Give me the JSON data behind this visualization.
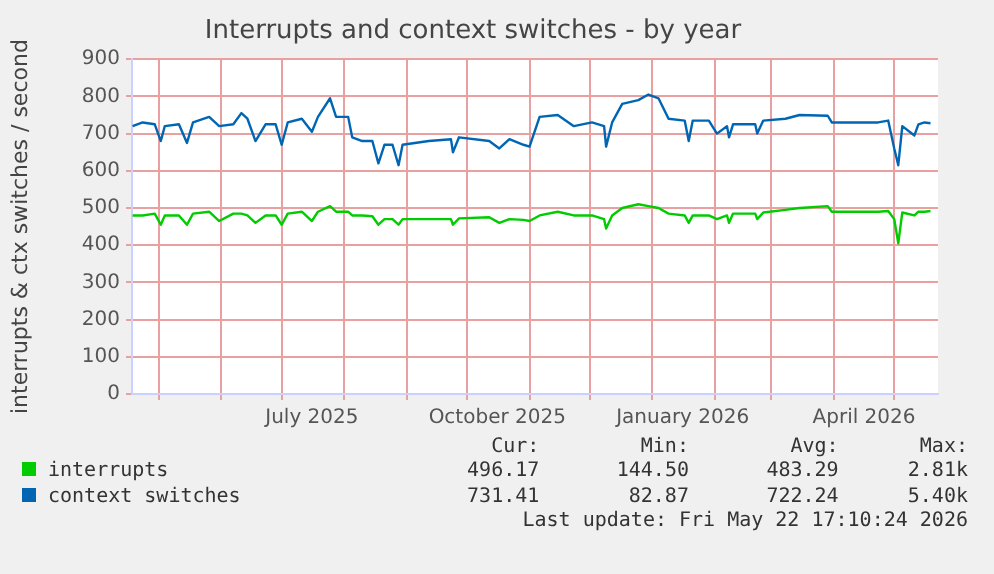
{
  "chart_data": {
    "type": "line",
    "title": "Interrupts and context switches - by year",
    "ylabel": "interrupts & ctx switches / second",
    "x": [
      "2025-04-18",
      "2025-04-23",
      "2025-04-29",
      "2025-05-02",
      "2025-05-04",
      "2025-05-11",
      "2025-05-15",
      "2025-05-18",
      "2025-05-26",
      "2025-05-31",
      "2025-06-07",
      "2025-06-11",
      "2025-06-14",
      "2025-06-18",
      "2025-06-23",
      "2025-06-28",
      "2025-07-01",
      "2025-07-04",
      "2025-07-11",
      "2025-07-16",
      "2025-07-19",
      "2025-07-25",
      "2025-07-28",
      "2025-08-03",
      "2025-08-05",
      "2025-08-10",
      "2025-08-15",
      "2025-08-18",
      "2025-08-21",
      "2025-08-25",
      "2025-08-28",
      "2025-08-30",
      "2025-09-12",
      "2025-09-23",
      "2025-09-24",
      "2025-09-27",
      "2025-10-12",
      "2025-10-17",
      "2025-10-22",
      "2025-10-29",
      "2025-11-01",
      "2025-11-06",
      "2025-11-15",
      "2025-11-23",
      "2025-12-02",
      "2025-12-08",
      "2025-12-09",
      "2025-12-12",
      "2025-12-17",
      "2025-12-25",
      "2025-12-30",
      "2026-01-04",
      "2026-01-09",
      "2026-01-17",
      "2026-01-19",
      "2026-01-21",
      "2026-01-29",
      "2026-02-02",
      "2026-02-07",
      "2026-02-08",
      "2026-02-10",
      "2026-02-21",
      "2026-02-22",
      "2026-02-25",
      "2026-03-08",
      "2026-03-15",
      "2026-03-29",
      "2026-03-31",
      "2026-04-23",
      "2026-04-28",
      "2026-05-01",
      "2026-05-03",
      "2026-05-05",
      "2026-05-11",
      "2026-05-13",
      "2026-05-16",
      "2026-05-19"
    ],
    "series": [
      {
        "name": "interrupts",
        "color": "#00cc00",
        "values": [
          480,
          480,
          485,
          455,
          480,
          480,
          455,
          485,
          490,
          465,
          485,
          485,
          480,
          460,
          480,
          480,
          455,
          485,
          490,
          465,
          490,
          505,
          490,
          490,
          480,
          480,
          478,
          455,
          470,
          470,
          455,
          470,
          470,
          470,
          455,
          472,
          475,
          460,
          470,
          468,
          465,
          480,
          490,
          480,
          480,
          470,
          445,
          480,
          500,
          510,
          505,
          500,
          485,
          480,
          460,
          480,
          480,
          470,
          480,
          460,
          485,
          485,
          470,
          488,
          495,
          500,
          505,
          490,
          490,
          492,
          470,
          405,
          488,
          480,
          490,
          490,
          492
        ]
      },
      {
        "name": "context switches",
        "color": "#0066b3",
        "values": [
          720,
          730,
          725,
          680,
          720,
          725,
          675,
          730,
          745,
          720,
          725,
          755,
          740,
          680,
          725,
          725,
          670,
          730,
          740,
          705,
          745,
          795,
          745,
          745,
          690,
          680,
          680,
          620,
          670,
          670,
          615,
          670,
          680,
          685,
          650,
          690,
          680,
          660,
          685,
          670,
          665,
          745,
          750,
          720,
          730,
          720,
          665,
          730,
          780,
          790,
          805,
          795,
          740,
          735,
          680,
          735,
          735,
          700,
          720,
          690,
          725,
          725,
          700,
          735,
          740,
          750,
          748,
          730,
          730,
          735,
          660,
          615,
          720,
          695,
          725,
          730,
          728
        ]
      }
    ],
    "xlim": [
      "2025-04-17T17:10",
      "2026-05-22T17:10"
    ],
    "xticks": [
      {
        "value": "2025-05-01",
        "label": null
      },
      {
        "value": "2025-06-01",
        "label": null
      },
      {
        "value": "2025-07-01",
        "label": null
      },
      {
        "value": "2025-07-16",
        "label": "July 2025"
      },
      {
        "value": "2025-08-01",
        "label": null
      },
      {
        "value": "2025-09-01",
        "label": null
      },
      {
        "value": "2025-10-01",
        "label": null
      },
      {
        "value": "2025-10-16",
        "label": "October 2025"
      },
      {
        "value": "2025-11-01",
        "label": null
      },
      {
        "value": "2025-12-01",
        "label": null
      },
      {
        "value": "2026-01-01",
        "label": null
      },
      {
        "value": "2026-01-16",
        "label": "January 2026"
      },
      {
        "value": "2026-02-01",
        "label": null
      },
      {
        "value": "2026-03-01",
        "label": null
      },
      {
        "value": "2026-04-01",
        "label": null
      },
      {
        "value": "2026-04-16",
        "label": "April 2026"
      },
      {
        "value": "2026-05-01",
        "label": null
      }
    ],
    "ylim": [
      0,
      900
    ],
    "yticks": [
      0,
      100,
      200,
      300,
      400,
      500,
      600,
      700,
      800,
      900
    ],
    "grid": true,
    "legend": "bottom",
    "marker": "none",
    "line_style": "solid",
    "annotations": [
      "Cur:",
      "Min:",
      "Avg:",
      "Max:",
      "496.17",
      "144.50",
      "483.29",
      "2.81k",
      "731.41",
      "82.87",
      "722.24",
      "5.40k",
      "Last update: Fri May 22 17:10:24 2026"
    ]
  }
}
